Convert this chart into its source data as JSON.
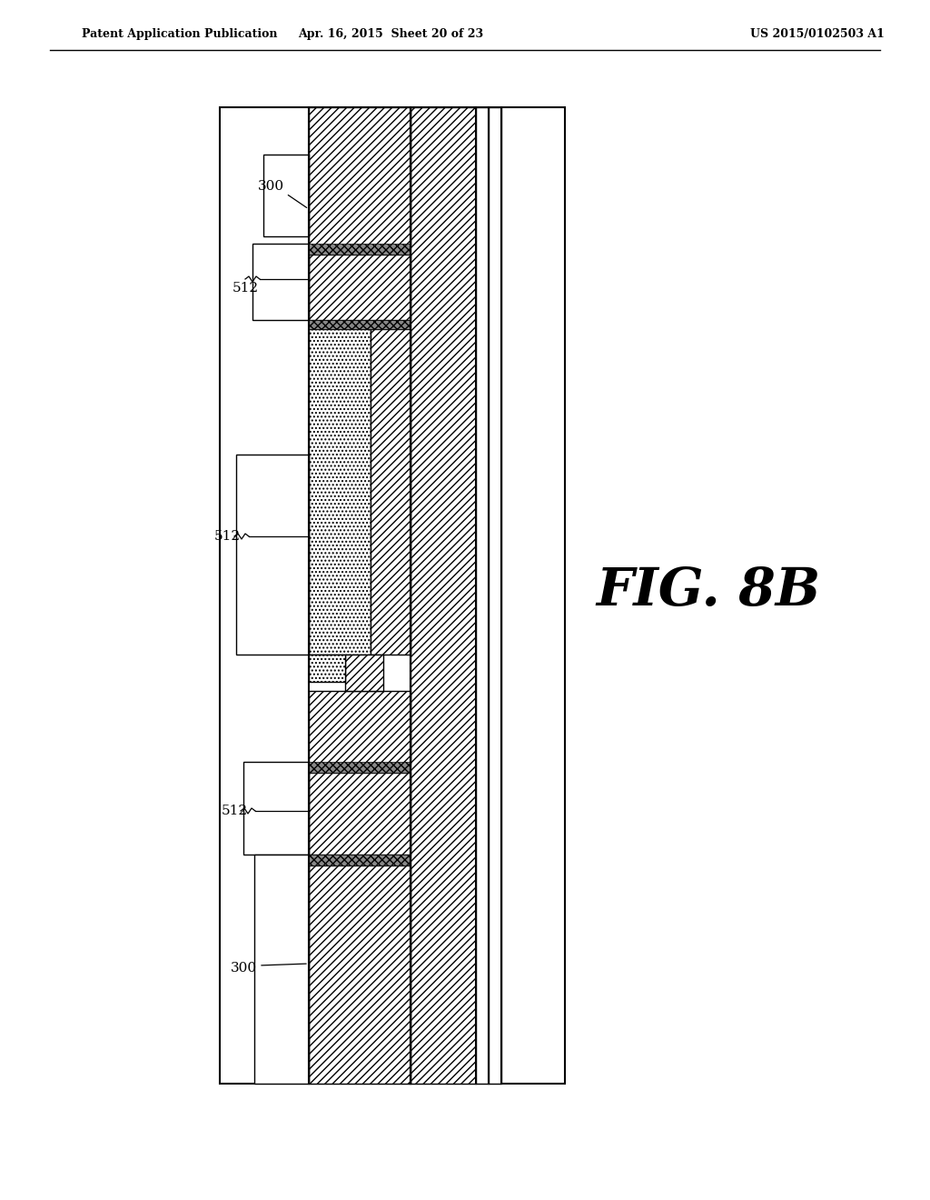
{
  "header_left": "Patent Application Publication",
  "header_mid": "Apr. 16, 2015  Sheet 20 of 23",
  "header_right": "US 2015/0102503 A1",
  "fig_label": "FIG. 8B",
  "bg_color": "#ffffff"
}
